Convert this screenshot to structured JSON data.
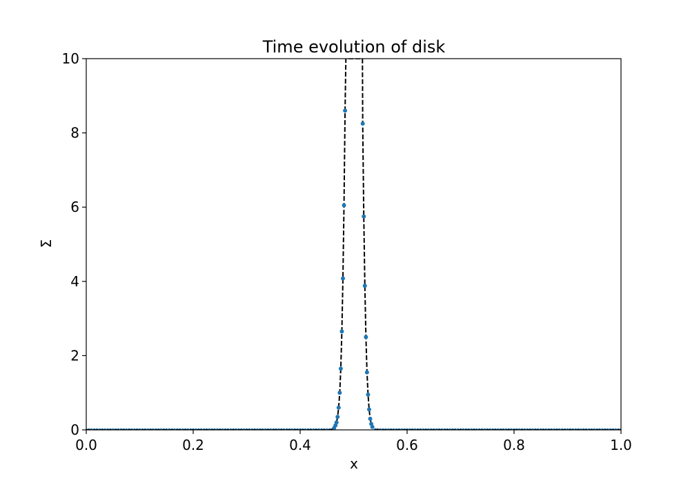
{
  "chart_data": {
    "type": "line",
    "title": "Time evolution of disk",
    "xlabel": "x",
    "ylabel": "Σ",
    "xlim": [
      0.0,
      1.0
    ],
    "ylim": [
      0,
      10
    ],
    "xticks": [
      "0.0",
      "0.2",
      "0.4",
      "0.6",
      "0.8",
      "1.0"
    ],
    "yticks": [
      "0",
      "2",
      "4",
      "6",
      "8",
      "10"
    ],
    "grid": false,
    "series": [
      {
        "style": "dashed-line",
        "color": "#000000",
        "points": [
          [
            0.0,
            0
          ],
          [
            0.44,
            0
          ],
          [
            0.455,
            0.0
          ],
          [
            0.46,
            0.02
          ],
          [
            0.463,
            0.05
          ],
          [
            0.466,
            0.12
          ],
          [
            0.468,
            0.2
          ],
          [
            0.47,
            0.35
          ],
          [
            0.472,
            0.6
          ],
          [
            0.474,
            1.0
          ],
          [
            0.476,
            1.65
          ],
          [
            0.478,
            2.65
          ],
          [
            0.48,
            4.08
          ],
          [
            0.482,
            6.05
          ],
          [
            0.484,
            8.6
          ],
          [
            0.4855,
            10.0
          ],
          [
            0.5165,
            10.0
          ],
          [
            0.517,
            8.25
          ],
          [
            0.519,
            5.75
          ],
          [
            0.521,
            3.88
          ],
          [
            0.523,
            2.5
          ],
          [
            0.525,
            1.55
          ],
          [
            0.527,
            0.95
          ],
          [
            0.529,
            0.55
          ],
          [
            0.531,
            0.3
          ],
          [
            0.533,
            0.16
          ],
          [
            0.535,
            0.08
          ],
          [
            0.538,
            0.03
          ],
          [
            0.542,
            0.01
          ],
          [
            0.55,
            0
          ],
          [
            0.56,
            0
          ],
          [
            1.0,
            0
          ]
        ]
      },
      {
        "style": "dots",
        "color": "#1f77b4",
        "points": [
          [
            0.4635,
            0.05
          ],
          [
            0.466,
            0.12
          ],
          [
            0.468,
            0.2
          ],
          [
            0.47,
            0.35
          ],
          [
            0.472,
            0.6
          ],
          [
            0.474,
            1.0
          ],
          [
            0.476,
            1.65
          ],
          [
            0.478,
            2.65
          ],
          [
            0.48,
            4.08
          ],
          [
            0.482,
            6.05
          ],
          [
            0.484,
            8.6
          ],
          [
            0.517,
            8.25
          ],
          [
            0.519,
            5.75
          ],
          [
            0.521,
            3.88
          ],
          [
            0.523,
            2.5
          ],
          [
            0.525,
            1.55
          ],
          [
            0.527,
            0.95
          ],
          [
            0.529,
            0.55
          ],
          [
            0.531,
            0.3
          ],
          [
            0.533,
            0.16
          ],
          [
            0.535,
            0.08
          ]
        ]
      }
    ]
  }
}
